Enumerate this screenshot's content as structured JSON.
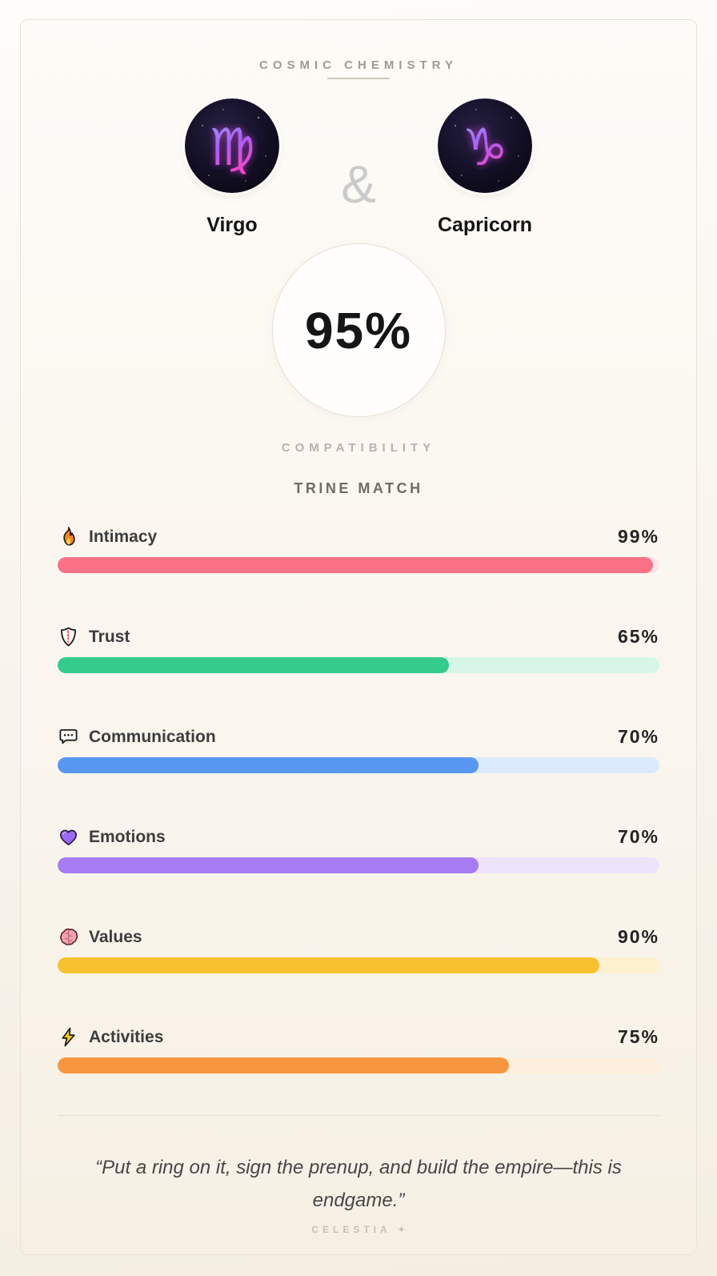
{
  "header": {
    "title": "COSMIC CHEMISTRY"
  },
  "pair": {
    "left": {
      "name": "Virgo",
      "glyph": "♍",
      "icon": "virgo-zodiac-icon"
    },
    "separator": "&",
    "right": {
      "name": "Capricorn",
      "glyph": "♑",
      "icon": "capricorn-zodiac-icon"
    }
  },
  "score": {
    "value": "95%",
    "label": "COMPATIBILITY",
    "match_type": "TRINE MATCH"
  },
  "stats": [
    {
      "icon": "fire-icon",
      "label": "Intimacy",
      "value": 99,
      "display": "99%",
      "fill": "#fb7186",
      "track": "#fde4e9"
    },
    {
      "icon": "shield-icon",
      "label": "Trust",
      "value": 65,
      "display": "65%",
      "fill": "#34cb8d",
      "track": "#d7f6e8"
    },
    {
      "icon": "speech-bubble-icon",
      "label": "Communication",
      "value": 70,
      "display": "70%",
      "fill": "#5897f1",
      "track": "#dbe9fc"
    },
    {
      "icon": "purple-heart-icon",
      "label": "Emotions",
      "value": 70,
      "display": "70%",
      "fill": "#a77bf2",
      "track": "#ede4fc"
    },
    {
      "icon": "brain-icon",
      "label": "Values",
      "value": 90,
      "display": "90%",
      "fill": "#f6c02f",
      "track": "#fcf0cf"
    },
    {
      "icon": "lightning-icon",
      "label": "Activities",
      "value": 75,
      "display": "75%",
      "fill": "#f8963f",
      "track": "#fdeedd"
    }
  ],
  "quote": "“Put a ring on it, sign the prenup, and build the empire—this is endgame.”",
  "brand": {
    "name": "CELESTIA",
    "glyph": "✦"
  },
  "colors": {
    "zodiac_gradient_top": "#8f9cf8",
    "zodiac_gradient_mid": "#a960f5",
    "zodiac_gradient_bottom": "#f747c0",
    "ampersand": "#cbcbcb",
    "card_border": "#e7e2d7"
  }
}
